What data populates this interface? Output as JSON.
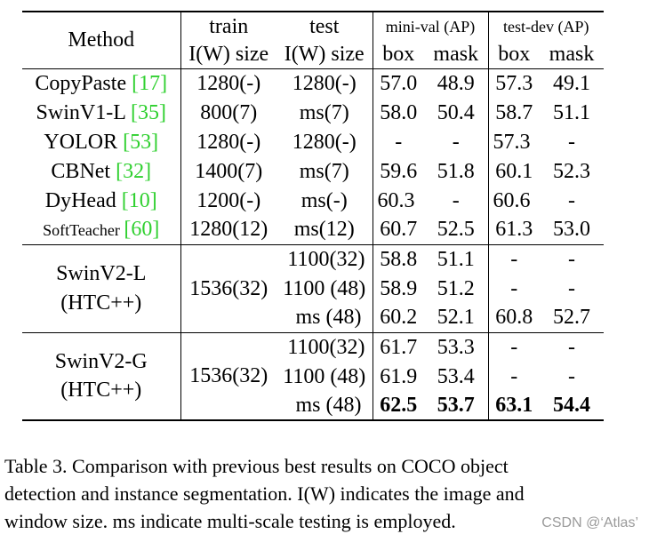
{
  "table": {
    "header": {
      "method": "Method",
      "train": "train",
      "test": "test",
      "train_size": "I(W) size",
      "test_size": "I(W) size",
      "minival": "mini-val (AP)",
      "testdev": "test-dev (AP)",
      "box1": "box",
      "mask1": "mask",
      "box2": "box",
      "mask2": "mask"
    },
    "rows": [
      {
        "name": "CopyPaste ",
        "ref": "[17]",
        "train": "1280(-)",
        "test": "1280(-)",
        "mv_box": "57.0",
        "mv_mask": "48.9",
        "td_box": "57.3",
        "td_mask": "49.1"
      },
      {
        "name": "SwinV1-L ",
        "ref": "[35]",
        "train": "800(7)",
        "test": "ms(7)",
        "mv_box": "58.0",
        "mv_mask": "50.4",
        "td_box": "58.7",
        "td_mask": "51.1"
      },
      {
        "name": "YOLOR ",
        "ref": "[53]",
        "train": "1280(-)",
        "test": "1280(-)",
        "mv_box": "-",
        "mv_mask": "-",
        "td_box": "57.3",
        "td_mask": "-"
      },
      {
        "name": "CBNet ",
        "ref": "[32]",
        "train": "1400(7)",
        "test": "ms(7)",
        "mv_box": "59.6",
        "mv_mask": "51.8",
        "td_box": "60.1",
        "td_mask": "52.3"
      },
      {
        "name": "DyHead ",
        "ref": "[10]",
        "train": "1200(-)",
        "test": "ms(-)",
        "mv_box": "60.3",
        "mv_mask": "-",
        "td_box": "60.6",
        "td_mask": "-"
      },
      {
        "name": "SoftTeacher ",
        "ref": "[60]",
        "train": "1280(12)",
        "test": "ms(12)",
        "mv_box": "60.7",
        "mv_mask": "52.5",
        "td_box": "61.3",
        "td_mask": "53.0"
      }
    ],
    "groups": [
      {
        "name_line1": "SwinV2-L",
        "name_line2": "(HTC++)",
        "train": "1536(32)",
        "rows": [
          {
            "test": "1100(32)",
            "mv_box": "58.8",
            "mv_mask": "51.1",
            "td_box": "-",
            "td_mask": "-"
          },
          {
            "test": "1100 (48)",
            "mv_box": "58.9",
            "mv_mask": "51.2",
            "td_box": "-",
            "td_mask": "-"
          },
          {
            "test": "ms (48)",
            "mv_box": "60.2",
            "mv_mask": "52.1",
            "td_box": "60.8",
            "td_mask": "52.7"
          }
        ]
      },
      {
        "name_line1": "SwinV2-G",
        "name_line2": "(HTC++)",
        "train": "1536(32)",
        "rows": [
          {
            "test": "1100(32)",
            "mv_box": "61.7",
            "mv_mask": "53.3",
            "td_box": "-",
            "td_mask": "-"
          },
          {
            "test": "1100 (48)",
            "mv_box": "61.9",
            "mv_mask": "53.4",
            "td_box": "-",
            "td_mask": "-"
          },
          {
            "test": "ms (48)",
            "mv_box": "62.5",
            "mv_mask": "53.7",
            "td_box": "63.1",
            "td_mask": "54.4"
          }
        ]
      }
    ]
  },
  "caption": {
    "line1": "Table 3.  Comparison with previous best results on COCO object",
    "line2": "detection and instance segmentation. I(W) indicates the image and",
    "line3": "window size. ms indicate multi-scale testing is employed."
  },
  "watermark": "CSDN @‘Atlas’"
}
